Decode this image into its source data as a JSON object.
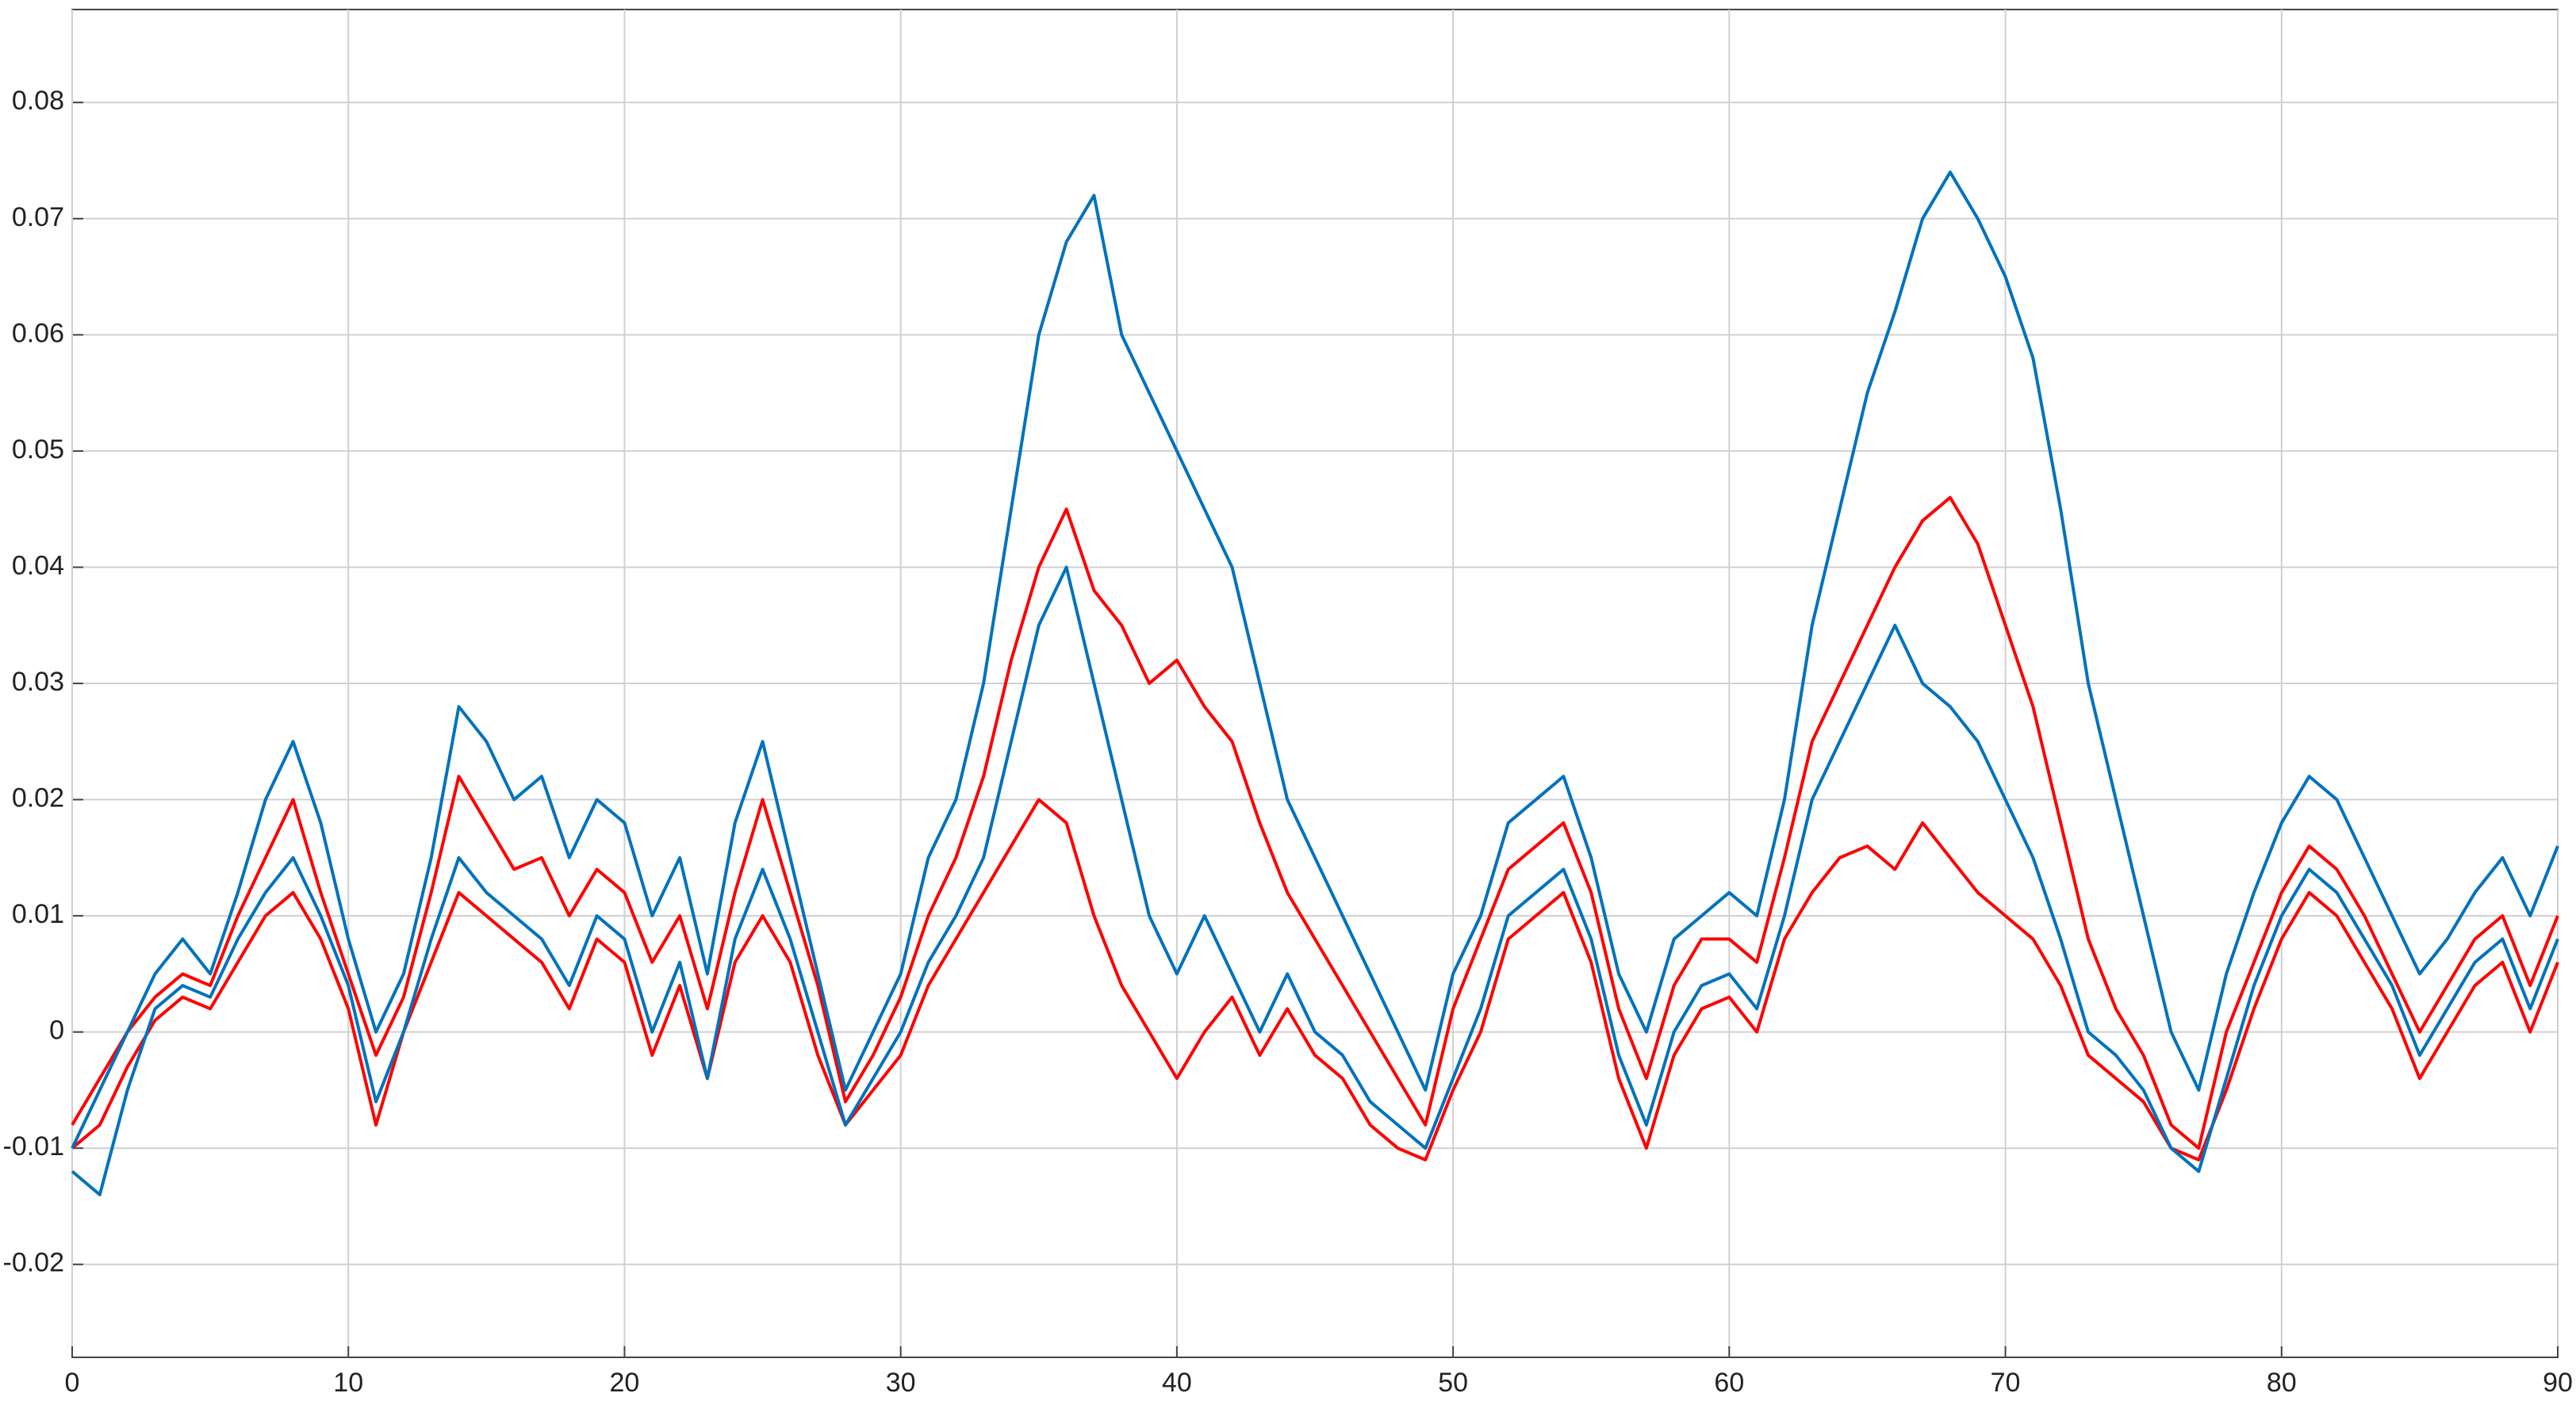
{
  "chart_data": {
    "type": "line",
    "x": [
      0,
      1,
      2,
      3,
      4,
      5,
      6,
      7,
      8,
      9,
      10,
      11,
      12,
      13,
      14,
      15,
      16,
      17,
      18,
      19,
      20,
      21,
      22,
      23,
      24,
      25,
      26,
      27,
      28,
      29,
      30,
      31,
      32,
      33,
      34,
      35,
      36,
      37,
      38,
      39,
      40,
      41,
      42,
      43,
      44,
      45,
      46,
      47,
      48,
      49,
      50,
      51,
      52,
      53,
      54,
      55,
      56,
      57,
      58,
      59,
      60,
      61,
      62,
      63,
      64,
      65,
      66,
      67,
      68,
      69,
      70,
      71,
      72,
      73,
      74,
      75,
      76,
      77,
      78,
      79,
      80,
      81,
      82,
      83,
      84,
      85,
      86,
      87,
      88,
      89,
      90
    ],
    "series": [
      {
        "color": "#ff0000",
        "values": [
          -0.01,
          -0.008,
          -0.003,
          0.001,
          0.003,
          0.002,
          0.006,
          0.01,
          0.012,
          0.008,
          0.002,
          -0.008,
          0.0,
          0.006,
          0.012,
          0.01,
          0.008,
          0.006,
          0.002,
          0.008,
          0.006,
          -0.002,
          0.004,
          -0.004,
          0.006,
          0.01,
          0.006,
          -0.002,
          -0.008,
          -0.005,
          -0.002,
          0.004,
          0.008,
          0.012,
          0.016,
          0.02,
          0.018,
          0.01,
          0.004,
          0.0,
          -0.004,
          0.0,
          0.003,
          -0.002,
          0.002,
          -0.002,
          -0.004,
          -0.008,
          -0.01,
          -0.011,
          -0.005,
          0.0,
          0.008,
          0.01,
          0.012,
          0.006,
          -0.004,
          -0.01,
          -0.002,
          0.002,
          0.003,
          0.0,
          0.008,
          0.012,
          0.015,
          0.016,
          0.014,
          0.018,
          0.015,
          0.012,
          0.01,
          0.008,
          0.004,
          -0.002,
          -0.004,
          -0.006,
          -0.01,
          -0.011,
          -0.005,
          0.002,
          0.008,
          0.012,
          0.01,
          0.006,
          0.002,
          -0.004,
          0.0,
          0.004,
          0.006,
          0.0,
          0.006
        ]
      },
      {
        "color": "#ff0000",
        "values": [
          -0.008,
          -0.004,
          0.0,
          0.003,
          0.005,
          0.004,
          0.01,
          0.015,
          0.02,
          0.012,
          0.005,
          -0.002,
          0.003,
          0.012,
          0.022,
          0.018,
          0.014,
          0.015,
          0.01,
          0.014,
          0.012,
          0.006,
          0.01,
          0.002,
          0.012,
          0.02,
          0.012,
          0.004,
          -0.006,
          -0.002,
          0.003,
          0.01,
          0.015,
          0.022,
          0.032,
          0.04,
          0.045,
          0.038,
          0.035,
          0.03,
          0.032,
          0.028,
          0.025,
          0.018,
          0.012,
          0.008,
          0.004,
          0.0,
          -0.004,
          -0.008,
          0.002,
          0.008,
          0.014,
          0.016,
          0.018,
          0.012,
          0.002,
          -0.004,
          0.004,
          0.008,
          0.008,
          0.006,
          0.015,
          0.025,
          0.03,
          0.035,
          0.04,
          0.044,
          0.046,
          0.042,
          0.035,
          0.028,
          0.018,
          0.008,
          0.002,
          -0.002,
          -0.008,
          -0.01,
          0.0,
          0.006,
          0.012,
          0.016,
          0.014,
          0.01,
          0.005,
          0.0,
          0.004,
          0.008,
          0.01,
          0.004,
          0.01
        ]
      },
      {
        "color": "#0072bd",
        "values": [
          -0.012,
          -0.014,
          -0.005,
          0.002,
          0.004,
          0.003,
          0.008,
          0.012,
          0.015,
          0.01,
          0.004,
          -0.006,
          0.0,
          0.008,
          0.015,
          0.012,
          0.01,
          0.008,
          0.004,
          0.01,
          0.008,
          0.0,
          0.006,
          -0.004,
          0.008,
          0.014,
          0.008,
          0.0,
          -0.008,
          -0.004,
          0.0,
          0.006,
          0.01,
          0.015,
          0.025,
          0.035,
          0.04,
          0.03,
          0.02,
          0.01,
          0.005,
          0.01,
          0.005,
          0.0,
          0.005,
          0.0,
          -0.002,
          -0.006,
          -0.008,
          -0.01,
          -0.004,
          0.002,
          0.01,
          0.012,
          0.014,
          0.008,
          -0.002,
          -0.008,
          0.0,
          0.004,
          0.005,
          0.002,
          0.01,
          0.02,
          0.025,
          0.03,
          0.035,
          0.03,
          0.028,
          0.025,
          0.02,
          0.015,
          0.008,
          0.0,
          -0.002,
          -0.005,
          -0.01,
          -0.012,
          -0.004,
          0.004,
          0.01,
          0.014,
          0.012,
          0.008,
          0.004,
          -0.002,
          0.002,
          0.006,
          0.008,
          0.002,
          0.008
        ]
      },
      {
        "color": "#0072bd",
        "values": [
          -0.01,
          -0.005,
          0.0,
          0.005,
          0.008,
          0.005,
          0.012,
          0.02,
          0.025,
          0.018,
          0.008,
          0.0,
          0.005,
          0.015,
          0.028,
          0.025,
          0.02,
          0.022,
          0.015,
          0.02,
          0.018,
          0.01,
          0.015,
          0.005,
          0.018,
          0.025,
          0.015,
          0.005,
          -0.005,
          0.0,
          0.005,
          0.015,
          0.02,
          0.03,
          0.045,
          0.06,
          0.068,
          0.072,
          0.06,
          0.055,
          0.05,
          0.045,
          0.04,
          0.03,
          0.02,
          0.015,
          0.01,
          0.005,
          0.0,
          -0.005,
          0.005,
          0.01,
          0.018,
          0.02,
          0.022,
          0.015,
          0.005,
          0.0,
          0.008,
          0.01,
          0.012,
          0.01,
          0.02,
          0.035,
          0.045,
          0.055,
          0.062,
          0.07,
          0.074,
          0.07,
          0.065,
          0.058,
          0.045,
          0.03,
          0.02,
          0.01,
          0.0,
          -0.005,
          0.005,
          0.012,
          0.018,
          0.022,
          0.02,
          0.015,
          0.01,
          0.005,
          0.008,
          0.012,
          0.015,
          0.01,
          0.016
        ]
      }
    ],
    "xlim": [
      0,
      90
    ],
    "xticks": [
      0,
      10,
      20,
      30,
      40,
      50,
      60,
      70,
      80,
      90
    ],
    "ylim": [
      -0.028,
      0.088
    ],
    "yticks": [
      -0.02,
      -0.01,
      0,
      0.01,
      0.02,
      0.03,
      0.04,
      0.05,
      0.06,
      0.07,
      0.08
    ],
    "grid": true
  }
}
